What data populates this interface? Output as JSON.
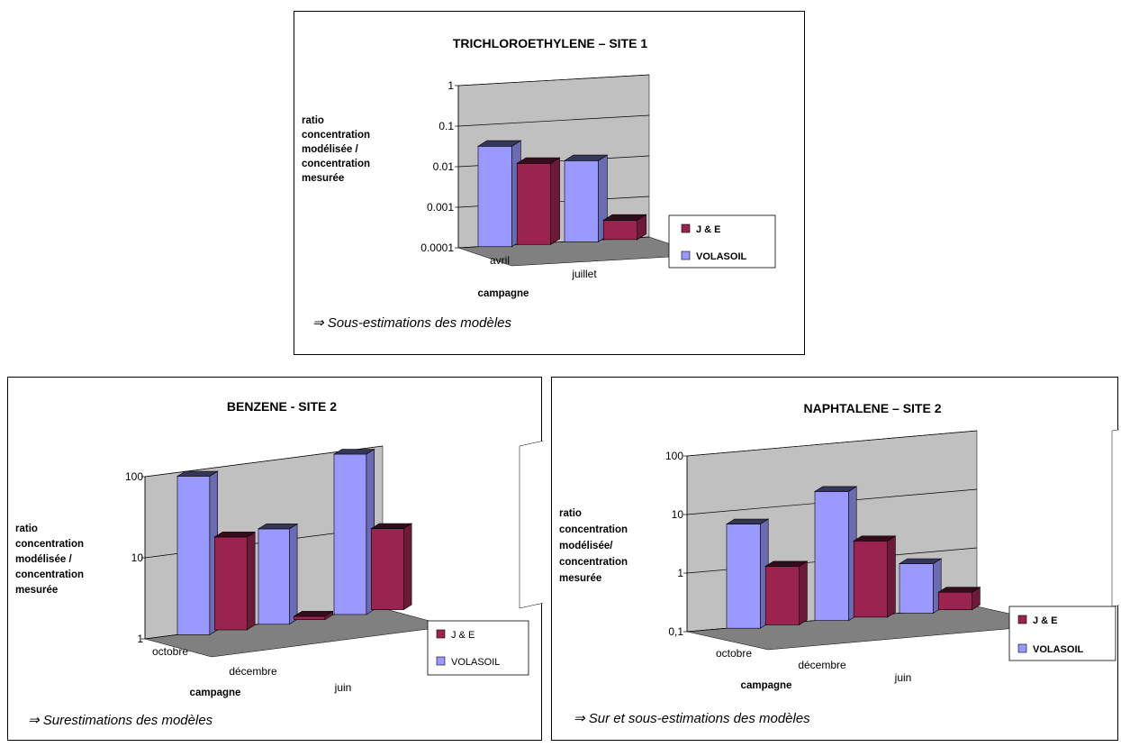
{
  "colors": {
    "je": "#9b2350",
    "volasoil": "#9999ff",
    "wall": "#c0c0c0",
    "floor": "#808080"
  },
  "chart_data": [
    {
      "type": "bar",
      "title": "TRICHLOROETHYLENE – SITE 1",
      "log_scale": true,
      "ylim": [
        0.0001,
        1
      ],
      "yticks": [
        "1",
        "0.1",
        "0.01",
        "0.001",
        "0.0001"
      ],
      "ylabel_lines": [
        "ratio",
        "concentration",
        "modélisée /",
        "concentration",
        "mesurée"
      ],
      "xlabel": "campagne",
      "categories": [
        "avril",
        "juillet"
      ],
      "series": [
        {
          "name": "J & E",
          "values": [
            0.01,
            0.0003
          ]
        },
        {
          "name": "VOLASOIL",
          "values": [
            0.03,
            0.01
          ]
        }
      ],
      "legend_position": "right",
      "note": "⇒ Sous-estimations des modèles"
    },
    {
      "type": "bar",
      "title": "BENZENE - SITE 2",
      "log_scale": true,
      "ylim": [
        1,
        100
      ],
      "yticks": [
        "100",
        "10",
        "1"
      ],
      "ylabel_lines": [
        "ratio",
        "concentration",
        "modélisée /",
        "concentration",
        "mesurée"
      ],
      "xlabel": "campagne",
      "categories": [
        "octobre",
        "décembre",
        "juin"
      ],
      "series": [
        {
          "name": "J & E",
          "values": [
            14,
            1.1,
            10
          ]
        },
        {
          "name": "VOLASOIL",
          "values": [
            90,
            15,
            95
          ]
        }
      ],
      "legend_position": "right",
      "note": "⇒ Surestimations des modèles"
    },
    {
      "type": "bar",
      "title": "NAPHTALENE – SITE 2",
      "log_scale": true,
      "ylim": [
        0.1,
        100
      ],
      "yticks": [
        "100",
        "10",
        "1",
        "0,1"
      ],
      "ylabel_lines": [
        "ratio",
        "concentration",
        "modélisée/",
        "concentration",
        "mesurée"
      ],
      "xlabel": "campagne",
      "categories": [
        "octobre",
        "décembre",
        "juin"
      ],
      "series": [
        {
          "name": "J & E",
          "values": [
            1,
            2,
            0.2
          ]
        },
        {
          "name": "VOLASOIL",
          "values": [
            6,
            16,
            0.7
          ]
        }
      ],
      "legend_position": "right",
      "note": "⇒ Sur et sous-estimations des modèles"
    }
  ]
}
